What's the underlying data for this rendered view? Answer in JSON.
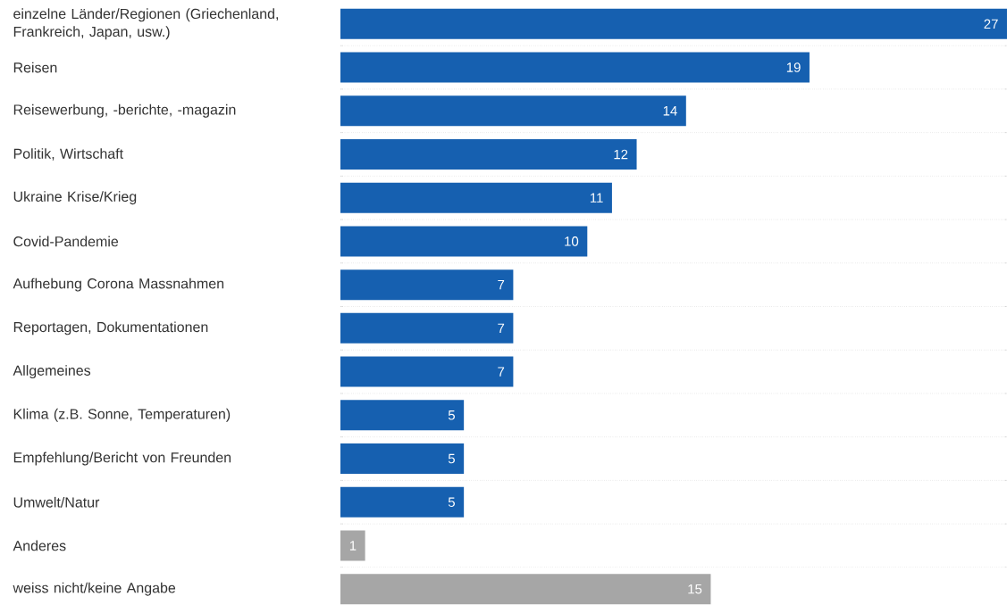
{
  "chart_data": {
    "type": "bar",
    "orientation": "horizontal",
    "categories": [
      "einzelne Länder/Regionen (Griechenland, Frankreich, Japan, usw.)",
      "Reisen",
      "Reisewerbung, -berichte, -magazin",
      "Politik, Wirtschaft",
      "Ukraine Krise/Krieg",
      "Covid-Pandemie",
      "Aufhebung Corona Massnahmen",
      "Reportagen, Dokumentationen",
      "Allgemeines",
      "Klima (z.B. Sonne, Temperaturen)",
      "Empfehlung/Bericht von Freunden",
      "Umwelt/Natur",
      "Anderes",
      "weiss nicht/keine Angabe"
    ],
    "values": [
      27,
      19,
      14,
      12,
      11,
      10,
      7,
      7,
      7,
      5,
      5,
      5,
      1,
      15
    ],
    "colors": [
      "#1660b0",
      "#1660b0",
      "#1660b0",
      "#1660b0",
      "#1660b0",
      "#1660b0",
      "#1660b0",
      "#1660b0",
      "#1660b0",
      "#1660b0",
      "#1660b0",
      "#1660b0",
      "#a6a6a6",
      "#a6a6a6"
    ],
    "data_labels": true,
    "grid": "y",
    "tick_labels": "y"
  }
}
